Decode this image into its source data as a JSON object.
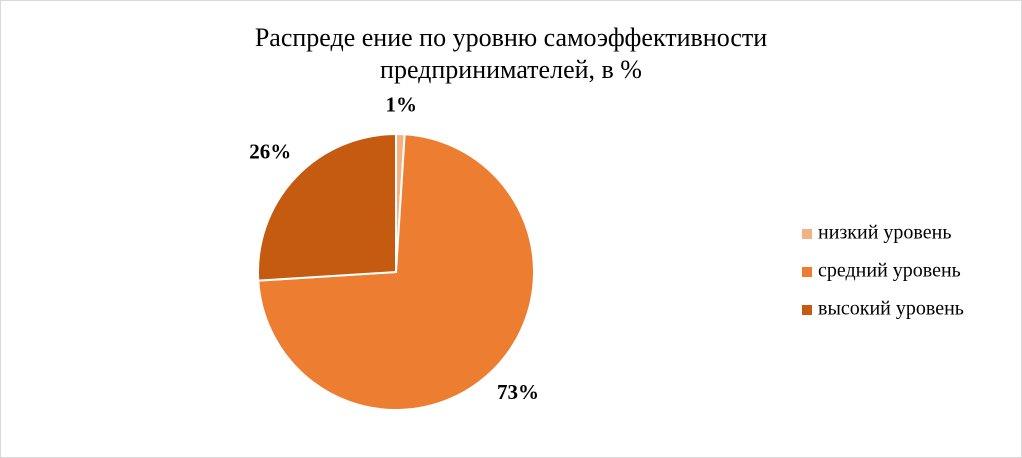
{
  "chart_data": {
    "type": "pie",
    "title": [
      "Распреде ение по уровню самоэффективности",
      "предпринимателей, в %"
    ],
    "categories": [
      "низкий уровень",
      "средний уровень",
      "высокий уровень"
    ],
    "values": [
      1,
      73,
      26
    ],
    "value_labels": [
      "1%",
      "73%",
      "26%"
    ],
    "colors": [
      "#f4b183",
      "#ed7d31",
      "#c55a11"
    ],
    "legend": "right"
  }
}
